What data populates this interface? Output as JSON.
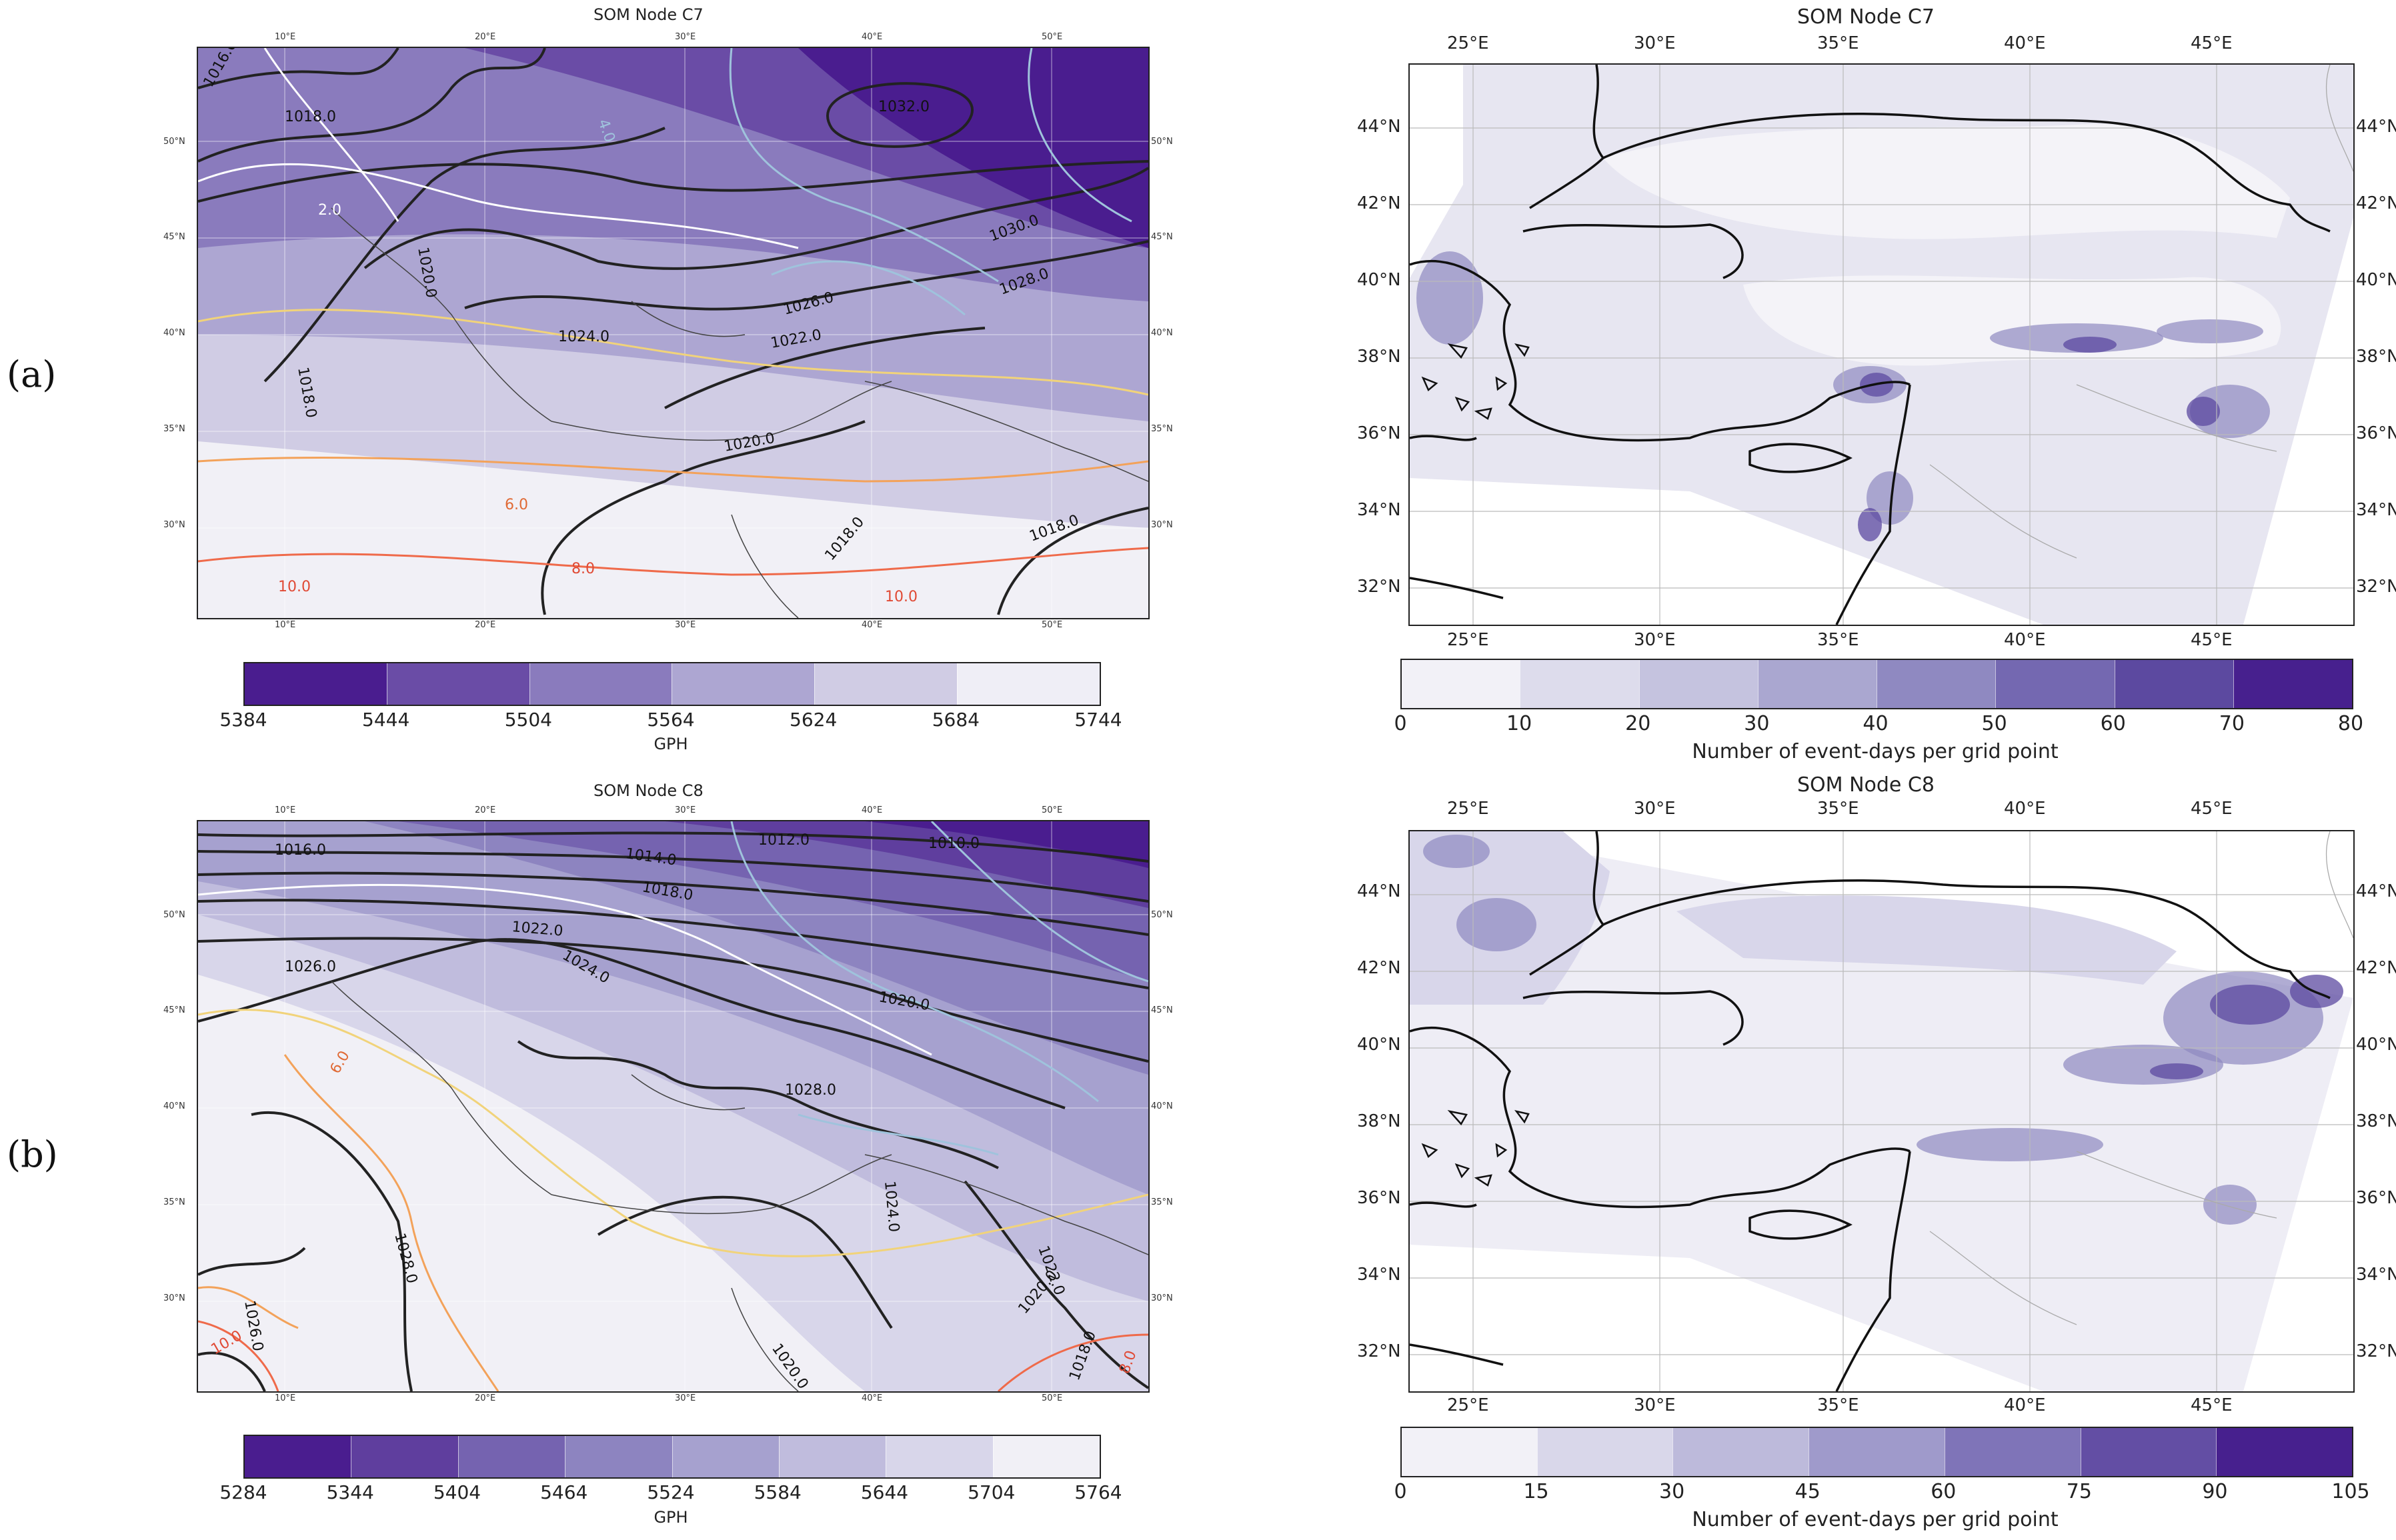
{
  "panels": {
    "a": {
      "label": "(a)",
      "gph_title": "SOM Node C7",
      "count_title": "SOM Node C7"
    },
    "b": {
      "label": "(b)",
      "gph_title": "SOM Node C8",
      "count_title": "SOM Node C8"
    }
  },
  "gph_map_ticks": {
    "top": [
      "10°E",
      "20°E",
      "30°E",
      "40°E",
      "50°E"
    ],
    "bottom": [
      "10°E",
      "20°E",
      "30°E",
      "40°E",
      "50°E"
    ],
    "lat": [
      "50°N",
      "45°N",
      "40°N",
      "35°N",
      "30°N"
    ]
  },
  "count_map_ticks": {
    "lon": [
      "25°E",
      "30°E",
      "35°E",
      "40°E",
      "45°E"
    ],
    "lat": [
      "44°N",
      "42°N",
      "40°N",
      "38°N",
      "36°N",
      "34°N",
      "32°N"
    ]
  },
  "contour_labels_a": [
    "1016.0",
    "1018.0",
    "1032.0",
    "1030.0",
    "1028.0",
    "1026.0",
    "1024.0",
    "1022.0",
    "1020.0",
    "1020.0",
    "1018.0",
    "1018.0",
    "1018.0",
    "6.0",
    "8.0",
    "10.0",
    "10.0",
    "2.0",
    "4.0"
  ],
  "contour_labels_b": [
    "1016.0",
    "1014.0",
    "1012.0",
    "1010.0",
    "1018.0",
    "1022.0",
    "1024.0",
    "1020.0",
    "1026.0",
    "1028.0",
    "1024.0",
    "1022.0",
    "1020.0",
    "1020.0",
    "1018.0",
    "1028.0",
    "1026.0",
    "10.0",
    "8.0",
    "6.0"
  ],
  "colorbars": {
    "gph_a": {
      "label": "GPH",
      "ticks": [
        "5384",
        "5444",
        "5504",
        "5564",
        "5624",
        "5684",
        "5744"
      ],
      "colors": [
        "#4a1d8f",
        "#6a4ca6",
        "#8a7bbd",
        "#ada6d2",
        "#d0cce4",
        "#efeef6"
      ]
    },
    "count_a": {
      "label": "Number of event-days per grid point",
      "ticks": [
        "0",
        "10",
        "20",
        "30",
        "40",
        "50",
        "60",
        "70",
        "80"
      ],
      "colors": [
        "#f2f1f7",
        "#dddcec",
        "#c5c3df",
        "#aaa7d0",
        "#8f89c1",
        "#7468b1",
        "#5c49a0",
        "#47208e"
      ]
    },
    "gph_b": {
      "label": "GPH",
      "ticks": [
        "5284",
        "5344",
        "5404",
        "5464",
        "5524",
        "5584",
        "5644",
        "5704",
        "5764"
      ],
      "colors": [
        "#4a1d8f",
        "#5f3e9e",
        "#7563b0",
        "#8d84c0",
        "#a6a1cf",
        "#c0bcdd",
        "#d8d6ea",
        "#f1f0f6"
      ]
    },
    "count_b": {
      "label": "Number of event-days per grid point",
      "ticks": [
        "0",
        "15",
        "30",
        "45",
        "60",
        "75",
        "90",
        "105"
      ],
      "colors": [
        "#f2f1f7",
        "#d9d7ea",
        "#bdbadb",
        "#9f9acb",
        "#7f74b8",
        "#634ea4",
        "#47208e"
      ]
    }
  }
}
